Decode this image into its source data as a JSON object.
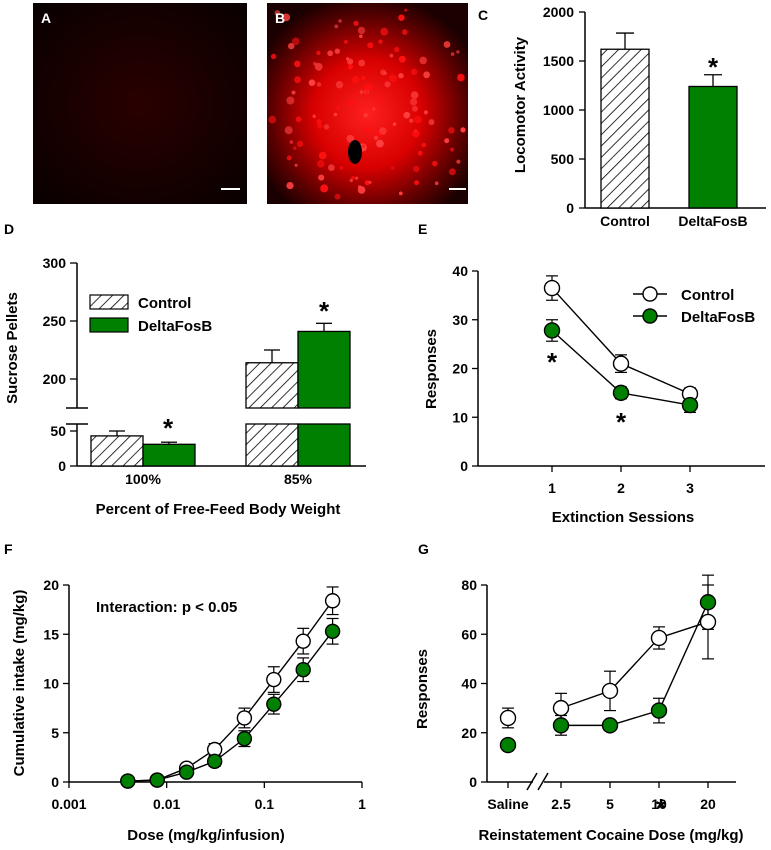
{
  "figure": {
    "panel_letters": {
      "A": "A",
      "B": "B",
      "C": "C",
      "D": "D",
      "E": "E",
      "F": "F",
      "G": "G"
    },
    "colors": {
      "control": "#ffffff",
      "deltafosb": "#008000",
      "axis": "#000000",
      "micrograph_bg": "#000000",
      "micrograph_stain": "#ff1a1a"
    }
  },
  "chart_data": [
    {
      "id": "C",
      "type": "bar",
      "categories": [
        "Control",
        "DeltaFosB"
      ],
      "values": [
        1620,
        1240
      ],
      "errors": [
        165,
        120
      ],
      "fills": [
        "hatch",
        "#008000"
      ],
      "ylabel": "Locomotor Activity",
      "ylim": [
        0,
        2000
      ],
      "yticks": [
        "0",
        "500",
        "1000",
        "1500",
        "2000"
      ],
      "significance": "*"
    },
    {
      "id": "D",
      "type": "bar",
      "categories": [
        "100%",
        "85%"
      ],
      "xlabel": "Percent of Free-Feed Body Weight",
      "ylabel": "Sucrose Pellets",
      "series": [
        {
          "name": "Control",
          "values": [
            43,
            214
          ],
          "errors": [
            7,
            11
          ]
        },
        {
          "name": "DeltaFosB",
          "values": [
            31,
            241
          ],
          "errors": [
            3,
            7
          ]
        }
      ],
      "ylim_lower": [
        0,
        60
      ],
      "ylim_upper": [
        175,
        300
      ],
      "yticks_lower": [
        "0",
        "50"
      ],
      "yticks_upper": [
        "200",
        "250",
        "300"
      ],
      "legend": [
        "Control",
        "DeltaFosB"
      ],
      "significance": "*"
    },
    {
      "id": "E",
      "type": "line",
      "x": [
        1,
        2,
        3
      ],
      "xlabel": "Extinction Sessions",
      "ylabel": "Responses",
      "xticks": [
        "1",
        "2",
        "3"
      ],
      "ylim": [
        0,
        40
      ],
      "yticks": [
        "0",
        "10",
        "20",
        "30",
        "40"
      ],
      "series": [
        {
          "name": "Control",
          "values": [
            36.5,
            21,
            14.8
          ],
          "errors": [
            2.5,
            1.8,
            1.2
          ]
        },
        {
          "name": "DeltaFosB",
          "values": [
            27.8,
            15,
            12.5
          ],
          "errors": [
            2.2,
            1.2,
            1.5
          ]
        }
      ],
      "legend": [
        "Control",
        "DeltaFosB"
      ],
      "significance": "*"
    },
    {
      "id": "F",
      "type": "line",
      "xscale": "log",
      "xlabel": "Dose (mg/kg/infusion)",
      "ylabel": "Cumulative intake (mg/kg)",
      "xticks": [
        "0.001",
        "0.01",
        "0.1",
        "1"
      ],
      "ylim": [
        0,
        20
      ],
      "yticks": [
        "0",
        "5",
        "10",
        "15",
        "20"
      ],
      "x": [
        0.004,
        0.008,
        0.016,
        0.031,
        0.0625,
        0.125,
        0.25,
        0.5
      ],
      "series": [
        {
          "name": "Control",
          "values": [
            0.1,
            0.2,
            1.4,
            3.3,
            6.5,
            10.4,
            14.3,
            18.4
          ],
          "errors": [
            0.2,
            0.2,
            0.4,
            0.6,
            1.0,
            1.3,
            1.3,
            1.4
          ]
        },
        {
          "name": "DeltaFosB",
          "values": [
            0.1,
            0.2,
            1.0,
            2.1,
            4.4,
            7.9,
            11.4,
            15.3
          ],
          "errors": [
            0.2,
            0.2,
            0.3,
            0.5,
            0.8,
            1.0,
            1.2,
            1.3
          ]
        }
      ],
      "annotation": "Interaction: p < 0.05"
    },
    {
      "id": "G",
      "type": "line",
      "xlabel": "Reinstatement Cocaine Dose (mg/kg)",
      "ylabel": "Responses",
      "xticks": [
        "Saline",
        "2.5",
        "5",
        "10",
        "20"
      ],
      "ylim": [
        0,
        80
      ],
      "yticks": [
        "0",
        "20",
        "40",
        "60",
        "80"
      ],
      "series": [
        {
          "name": "Control",
          "values": [
            26,
            30,
            37,
            58.5,
            65
          ],
          "errors": [
            4,
            6,
            8,
            4.5,
            15
          ]
        },
        {
          "name": "DeltaFosB",
          "values": [
            15,
            23,
            23,
            29,
            73
          ],
          "errors": [
            2,
            4,
            2,
            5,
            11
          ]
        }
      ],
      "significance": "*"
    }
  ]
}
